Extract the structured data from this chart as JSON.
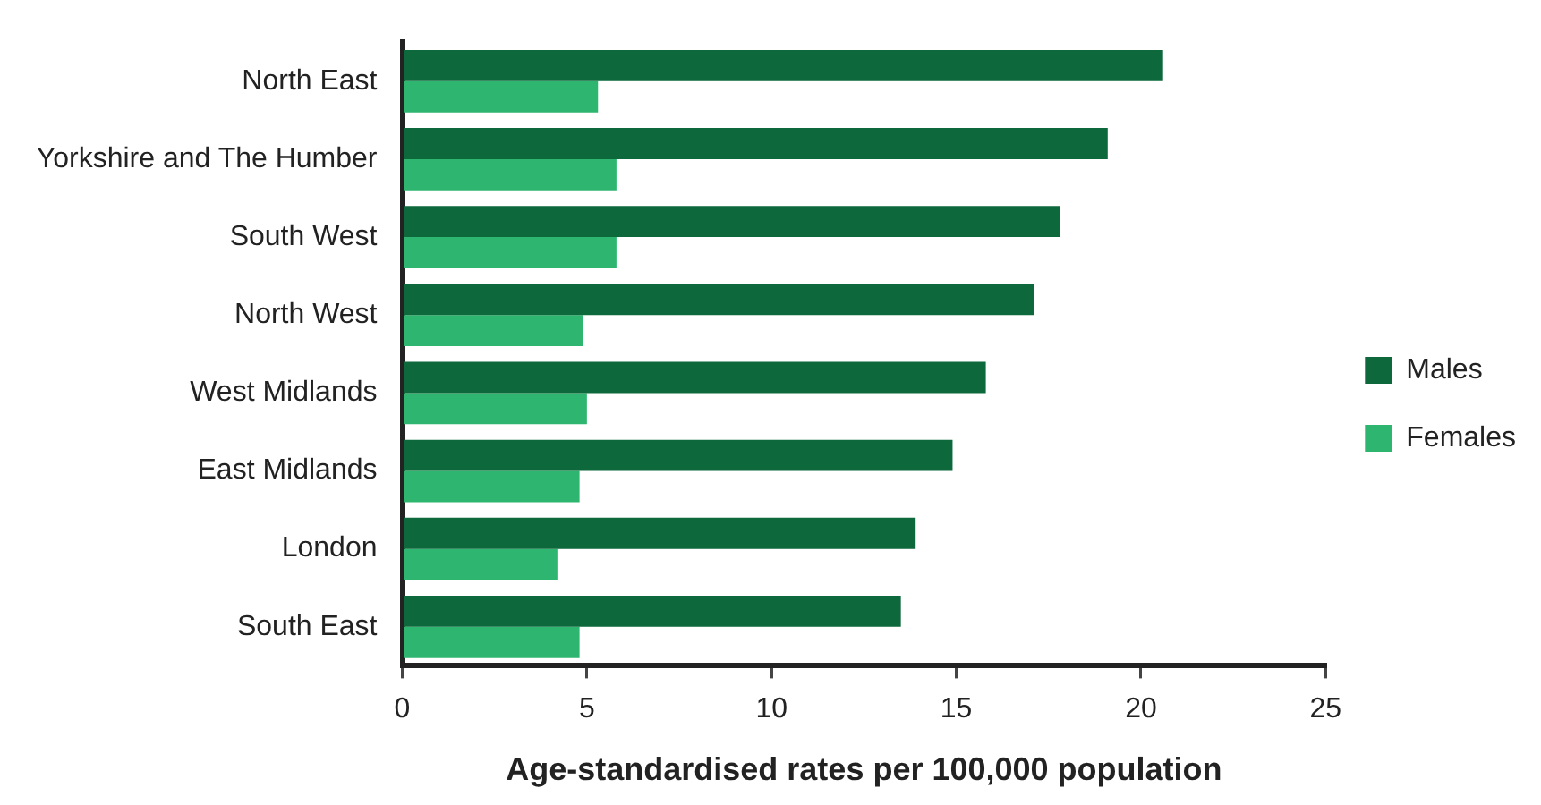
{
  "chart_data": {
    "type": "bar",
    "orientation": "horizontal",
    "xlabel": "Age-standardised rates per 100,000 population",
    "categories": [
      "North East",
      "Yorkshire and The Humber",
      "South West",
      "North West",
      "West Midlands",
      "East Midlands",
      "London",
      "South East"
    ],
    "series": [
      {
        "name": "Males",
        "color": "#0d693b",
        "values": [
          20.6,
          19.1,
          17.8,
          17.1,
          15.8,
          14.9,
          13.9,
          13.5
        ]
      },
      {
        "name": "Females",
        "color": "#2eb56f",
        "values": [
          5.3,
          5.8,
          5.8,
          4.9,
          5.0,
          4.8,
          4.2,
          4.8
        ]
      }
    ],
    "xlim": [
      0,
      25
    ],
    "xticks": [
      0,
      5,
      10,
      15,
      20,
      25
    ],
    "grid": false,
    "legend": "right"
  }
}
